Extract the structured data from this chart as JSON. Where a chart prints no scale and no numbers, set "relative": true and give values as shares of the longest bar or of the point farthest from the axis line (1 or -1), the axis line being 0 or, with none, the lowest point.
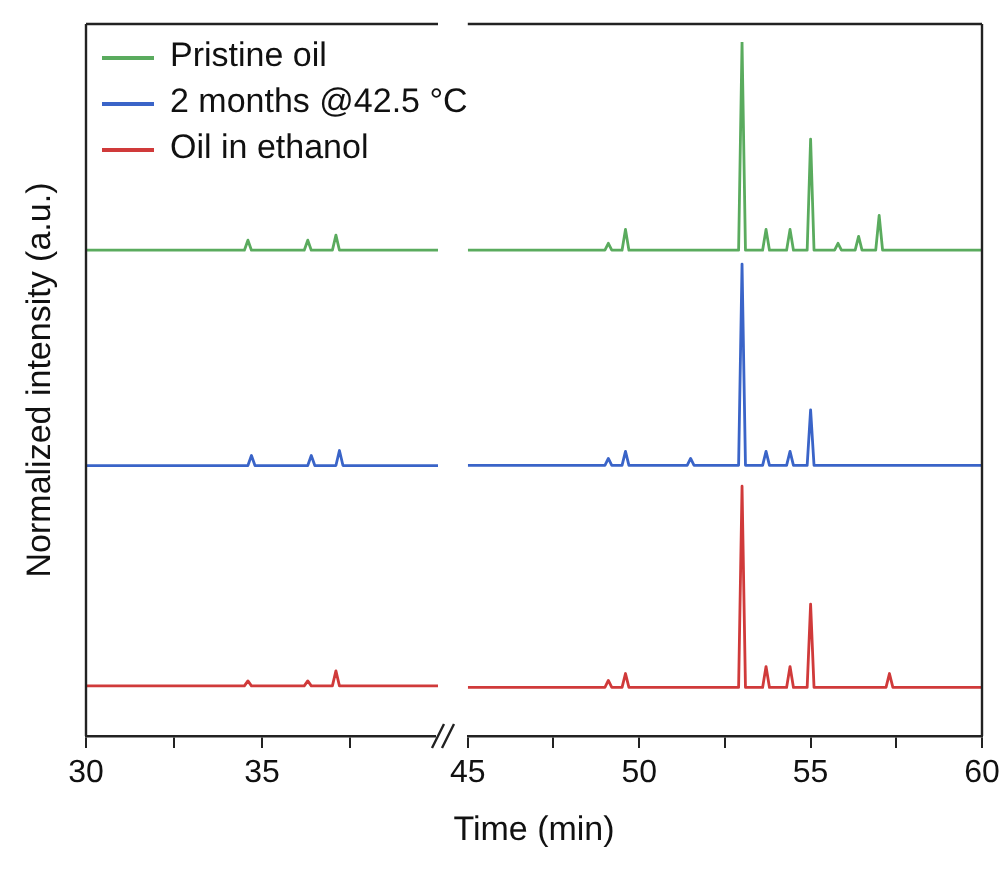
{
  "chart_data": [
    {
      "type": "line",
      "relative": true,
      "ylabel": "Normalized intensity (a.u.)",
      "xlim": [
        30,
        40
      ],
      "xticks": [
        30,
        {
          "value": 32.5,
          "label": null
        },
        35,
        {
          "value": 37.5,
          "label": null
        }
      ],
      "series": [
        {
          "color": "#5aab5e",
          "x": [
            30,
            34.5,
            34.6,
            34.7,
            36.2,
            36.3,
            36.4,
            37.0,
            37.1,
            37.2,
            40
          ],
          "values": [
            0.97,
            0.97,
            0.99,
            0.97,
            0.97,
            0.99,
            0.97,
            0.97,
            1.0,
            0.97,
            0.97
          ]
        },
        {
          "color": "#3a64c8",
          "x": [
            30,
            34.6,
            34.7,
            34.8,
            36.3,
            36.4,
            36.5,
            37.1,
            37.2,
            37.3,
            40
          ],
          "values": [
            0.54,
            0.54,
            0.56,
            0.54,
            0.54,
            0.56,
            0.54,
            0.54,
            0.57,
            0.54,
            0.54
          ]
        },
        {
          "color": "#d03a3a",
          "x": [
            30,
            34.5,
            34.6,
            34.7,
            36.2,
            36.3,
            36.4,
            37.0,
            37.1,
            37.2,
            40
          ],
          "values": [
            0.1,
            0.1,
            0.11,
            0.1,
            0.1,
            0.11,
            0.1,
            0.1,
            0.13,
            0.1,
            0.1
          ]
        }
      ]
    },
    {
      "type": "line",
      "relative": true,
      "xlabel": "Time (min)",
      "legend": "top left",
      "xlim": [
        45,
        60
      ],
      "xticks": [
        45,
        {
          "value": 47.5,
          "label": null
        },
        50,
        {
          "value": 52.5,
          "label": null
        },
        55,
        {
          "value": 57.5,
          "label": null
        },
        60
      ],
      "series": [
        {
          "name": "Pristine oil",
          "color": "#5aab5e",
          "x": [
            45,
            49.0,
            49.1,
            49.2,
            49.5,
            49.6,
            49.7,
            52.9,
            53.0,
            53.1,
            53.6,
            53.7,
            53.8,
            54.3,
            54.4,
            54.5,
            54.9,
            55.0,
            55.1,
            55.7,
            55.8,
            55.9,
            56.3,
            56.4,
            56.5,
            56.9,
            57.0,
            57.1,
            60
          ],
          "values": [
            0.7,
            0.7,
            0.71,
            0.7,
            0.7,
            0.73,
            0.7,
            0.7,
            1.0,
            0.7,
            0.7,
            0.73,
            0.7,
            0.7,
            0.73,
            0.7,
            0.7,
            0.86,
            0.7,
            0.7,
            0.71,
            0.7,
            0.7,
            0.72,
            0.7,
            0.7,
            0.75,
            0.7,
            0.7
          ]
        },
        {
          "name": "2 months @42.5 °C",
          "color": "#3a64c8",
          "x": [
            45,
            49.0,
            49.1,
            49.2,
            49.5,
            49.6,
            49.7,
            51.4,
            51.5,
            51.6,
            52.9,
            53.0,
            53.1,
            53.6,
            53.7,
            53.8,
            54.3,
            54.4,
            54.5,
            54.9,
            55.0,
            55.1,
            60
          ],
          "values": [
            0.39,
            0.39,
            0.4,
            0.39,
            0.39,
            0.41,
            0.39,
            0.39,
            0.4,
            0.39,
            0.39,
            0.68,
            0.39,
            0.39,
            0.41,
            0.39,
            0.39,
            0.41,
            0.39,
            0.39,
            0.47,
            0.39,
            0.39
          ]
        },
        {
          "name": "Oil in ethanol",
          "color": "#d03a3a",
          "x": [
            45,
            49.0,
            49.1,
            49.2,
            49.5,
            49.6,
            49.7,
            52.9,
            53.0,
            53.1,
            53.6,
            53.7,
            53.8,
            54.3,
            54.4,
            54.5,
            54.9,
            55.0,
            55.1,
            57.2,
            57.3,
            57.4,
            60
          ],
          "values": [
            0.07,
            0.07,
            0.08,
            0.07,
            0.07,
            0.09,
            0.07,
            0.07,
            0.36,
            0.07,
            0.07,
            0.1,
            0.07,
            0.07,
            0.1,
            0.07,
            0.07,
            0.19,
            0.07,
            0.07,
            0.09,
            0.07,
            0.07
          ]
        }
      ]
    }
  ]
}
